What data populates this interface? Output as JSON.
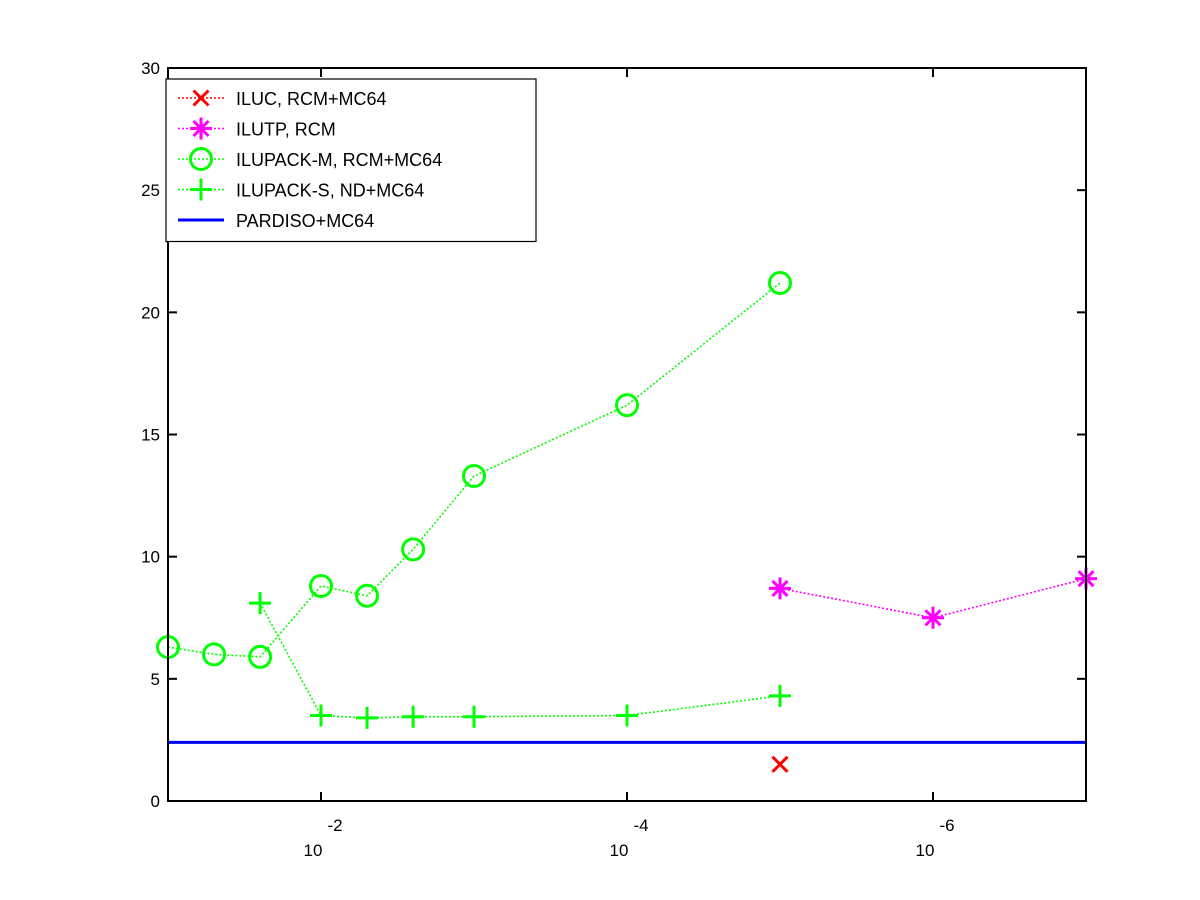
{
  "chart_data": {
    "type": "line",
    "title": "",
    "xlabel": "",
    "ylabel": "",
    "x_scale": "log",
    "x_reversed": true,
    "xlim": [
      0.1,
      1e-07
    ],
    "ylim": [
      0,
      30
    ],
    "y_ticks": [
      0,
      5,
      10,
      15,
      20,
      25,
      30
    ],
    "x_ticks": [
      {
        "value": 0.01,
        "base": "10",
        "exp": "-2"
      },
      {
        "value": 0.0001,
        "base": "10",
        "exp": "-4"
      },
      {
        "value": 1e-06,
        "base": "10",
        "exp": "-6"
      }
    ],
    "legend_position": "top-left",
    "series": [
      {
        "name": "ILUC, RCM+MC64",
        "color": "#ff0000",
        "marker": "x",
        "linestyle": "dotted",
        "x": [
          1e-05
        ],
        "y": [
          1.5
        ]
      },
      {
        "name": "ILUTP, RCM",
        "color": "#ff00ff",
        "marker": "asterisk",
        "linestyle": "dotted",
        "x": [
          1e-05,
          1e-06,
          1e-07
        ],
        "y": [
          8.7,
          7.5,
          9.1
        ]
      },
      {
        "name": "ILUPACK-M, RCM+MC64",
        "color": "#00ff00",
        "marker": "circle",
        "linestyle": "dotted",
        "x": [
          0.1,
          0.05,
          0.025,
          0.01,
          0.005,
          0.0025,
          0.001,
          0.0001,
          1e-05
        ],
        "y": [
          6.3,
          6.0,
          5.9,
          8.8,
          8.4,
          10.3,
          13.3,
          16.2,
          21.2
        ]
      },
      {
        "name": "ILUPACK-S, ND+MC64",
        "color": "#00ff00",
        "marker": "plus",
        "linestyle": "dotted",
        "x": [
          0.025,
          0.01,
          0.005,
          0.0025,
          0.001,
          0.0001,
          1e-05
        ],
        "y": [
          8.1,
          3.5,
          3.4,
          3.45,
          3.45,
          3.5,
          4.3
        ]
      },
      {
        "name": "PARDISO+MC64",
        "color": "#0000ff",
        "marker": "none",
        "linestyle": "solid",
        "x": [
          0.1,
          1e-07
        ],
        "y": [
          2.4,
          2.4
        ]
      }
    ]
  }
}
